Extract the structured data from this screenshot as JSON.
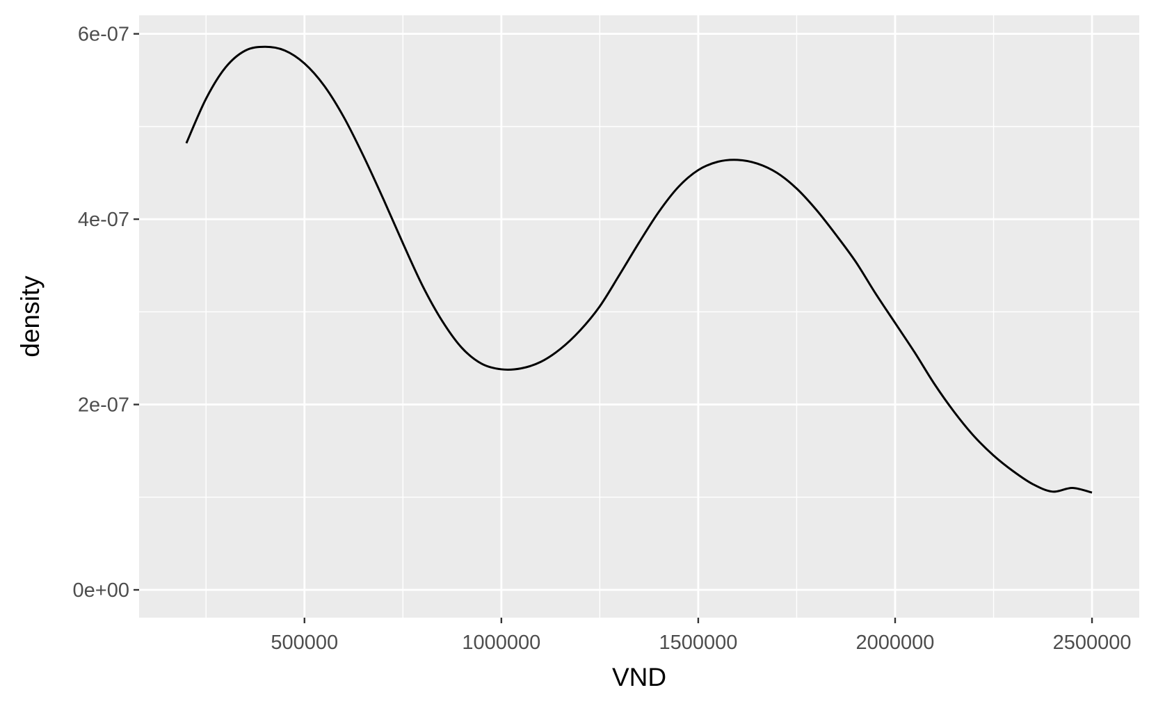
{
  "chart_data": {
    "type": "line",
    "title": "",
    "xlabel": "VND",
    "ylabel": "density",
    "xlim": [
      80000,
      2620000
    ],
    "ylim": [
      -3e-08,
      6.2e-07
    ],
    "x_ticks": [
      {
        "value": 500000,
        "label": "500000"
      },
      {
        "value": 1000000,
        "label": "1000000"
      },
      {
        "value": 1500000,
        "label": "1500000"
      },
      {
        "value": 2000000,
        "label": "2000000"
      },
      {
        "value": 2500000,
        "label": "2500000"
      }
    ],
    "x_minor_ticks": [
      250000,
      750000,
      1250000,
      1750000,
      2250000
    ],
    "y_ticks": [
      {
        "value": 0,
        "label": "0e+00"
      },
      {
        "value": 2e-07,
        "label": "2e-07"
      },
      {
        "value": 4e-07,
        "label": "4e-07"
      },
      {
        "value": 6e-07,
        "label": "6e-07"
      }
    ],
    "y_minor_ticks": [
      1e-07,
      3e-07,
      5e-07
    ],
    "grid": true,
    "colors": {
      "panel": "#ebebeb",
      "grid": "#ffffff",
      "line": "#000000"
    },
    "series": [
      {
        "x": [
          200000,
          250000,
          300000,
          350000,
          400000,
          450000,
          500000,
          550000,
          600000,
          650000,
          700000,
          750000,
          800000,
          850000,
          900000,
          950000,
          1000000,
          1050000,
          1100000,
          1150000,
          1200000,
          1250000,
          1300000,
          1350000,
          1400000,
          1450000,
          1500000,
          1550000,
          1600000,
          1650000,
          1700000,
          1750000,
          1800000,
          1850000,
          1900000,
          1950000,
          2000000,
          2050000,
          2100000,
          2150000,
          2200000,
          2250000,
          2300000,
          2350000,
          2400000,
          2450000,
          2500000
        ],
        "y": [
          4.82e-07,
          5.3e-07,
          5.64e-07,
          5.82e-07,
          5.86e-07,
          5.82e-07,
          5.68e-07,
          5.44e-07,
          5.1e-07,
          4.68e-07,
          4.22e-07,
          3.74e-07,
          3.28e-07,
          2.9e-07,
          2.61e-07,
          2.44e-07,
          2.38e-07,
          2.39e-07,
          2.46e-07,
          2.6e-07,
          2.8e-07,
          3.06e-07,
          3.4e-07,
          3.75e-07,
          4.08e-07,
          4.35e-07,
          4.53e-07,
          4.62e-07,
          4.64e-07,
          4.6e-07,
          4.5e-07,
          4.33e-07,
          4.1e-07,
          3.83e-07,
          3.54e-07,
          3.2e-07,
          2.88e-07,
          2.56e-07,
          2.22e-07,
          1.92e-07,
          1.66e-07,
          1.45e-07,
          1.28e-07,
          1.14e-07,
          1.06e-07,
          1.1e-07,
          1.05e-07
        ]
      }
    ]
  }
}
